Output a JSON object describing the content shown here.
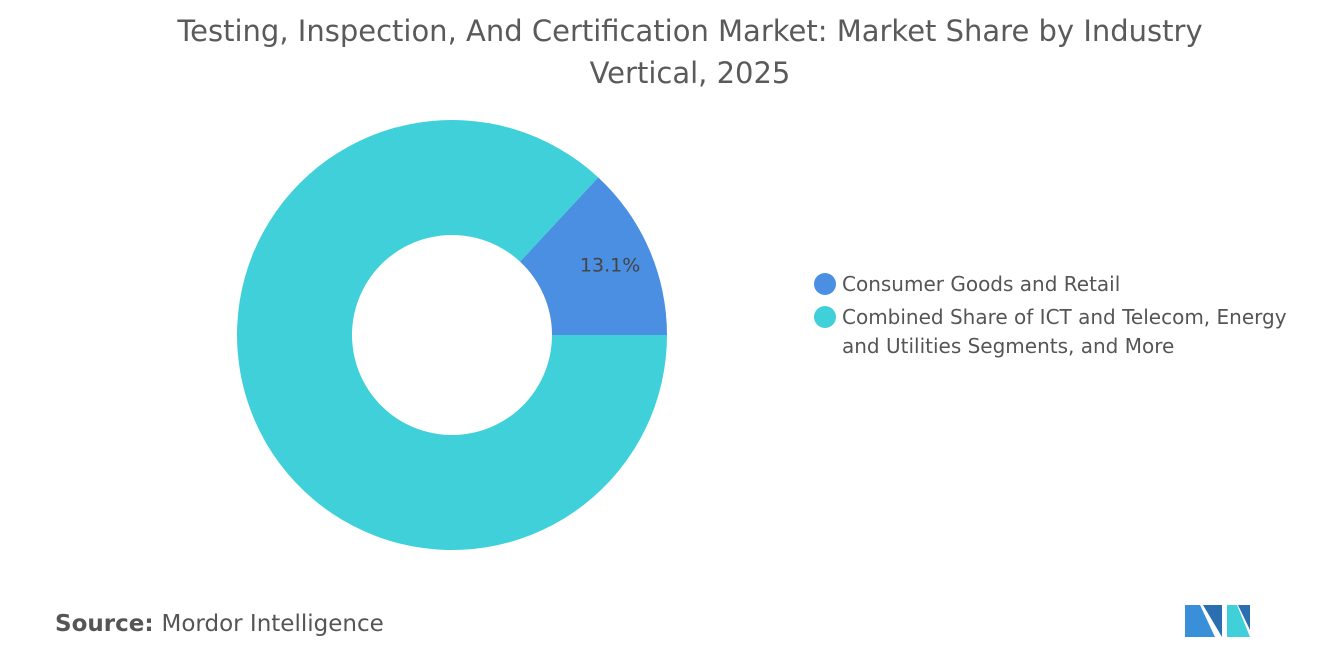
{
  "chart_data": {
    "type": "donut",
    "title": "Testing, Inspection, And Certification Market: Market Share by Industry Vertical, 2025",
    "categories": [
      "Consumer Goods and Retail",
      "Combined Share of ICT and Telecom, Energy and Utilities Segments, and More"
    ],
    "values": [
      13.1,
      86.9
    ],
    "value_labels": [
      "13.1%",
      null
    ],
    "colors": [
      "#4a8fe2",
      "#3fd0da"
    ],
    "legend": "right",
    "source_label": "Source:",
    "source": "Mordor Intelligence"
  }
}
